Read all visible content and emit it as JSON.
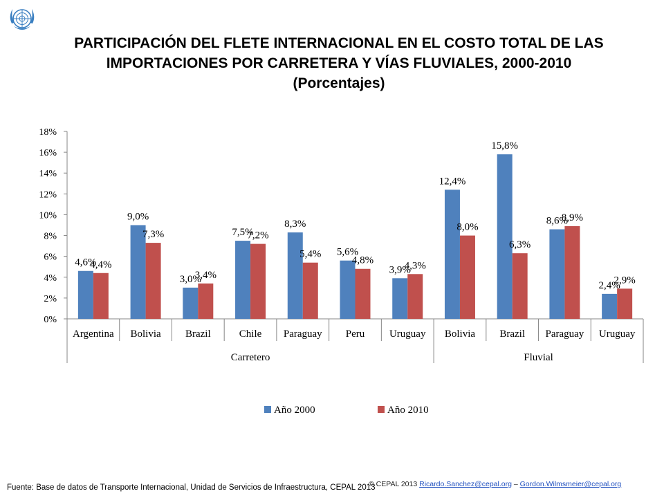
{
  "title": "PARTICIPACIÓN DEL FLETE INTERNACIONAL EN EL COSTO TOTAL DE LAS IMPORTACIONES POR CARRETERA Y VÍAS FLUVIALES, 2000-2010",
  "subtitle": "(Porcentajes)",
  "footer": {
    "source": "Fuente: Base de datos de Transporte Internacional, Unidad de Servicios de Infraestructura, CEPAL 2013",
    "copyright": "© CEPAL 2013",
    "email1": "Ricardo.Sanchez@cepal.org",
    "separator": "–",
    "email2": "Gordon.Wilmsmeier@cepal.org"
  },
  "logo_icon": "un-emblem-icon",
  "chart_data": {
    "type": "bar",
    "categories": [
      "Argentina",
      "Bolivia",
      "Brazil",
      "Chile",
      "Paraguay",
      "Peru",
      "Uruguay",
      "Bolivia",
      "Brazil",
      "Paraguay",
      "Uruguay"
    ],
    "groups": [
      {
        "label": "Carretero",
        "count": 7
      },
      {
        "label": "Fluvial",
        "count": 4
      }
    ],
    "series": [
      {
        "name": "Año 2000",
        "color": "#4f81bd",
        "values": [
          4.6,
          9.0,
          3.0,
          7.5,
          8.3,
          5.6,
          3.9,
          12.4,
          15.8,
          8.6,
          2.4
        ],
        "labels": [
          "4,6%",
          "9,0%",
          "3,0%",
          "7,5%",
          "8,3%",
          "5,6%",
          "3,9%",
          "12,4%",
          "15,8%",
          "8,6%",
          "2,4%"
        ]
      },
      {
        "name": "Año 2010",
        "color": "#c0504d",
        "values": [
          4.4,
          7.3,
          3.4,
          7.2,
          5.4,
          4.8,
          4.3,
          8.0,
          6.3,
          8.9,
          2.9
        ],
        "labels": [
          "4,4%",
          "7,3%",
          "3,4%",
          "7,2%",
          "5,4%",
          "4,8%",
          "4,3%",
          "8,0%",
          "6,3%",
          "8,9%",
          "2,9%"
        ]
      }
    ],
    "ylim": [
      0,
      18
    ],
    "yticks": [
      "0%",
      "2%",
      "4%",
      "6%",
      "8%",
      "10%",
      "12%",
      "14%",
      "16%",
      "18%"
    ],
    "ytick_values": [
      0,
      2,
      4,
      6,
      8,
      10,
      12,
      14,
      16,
      18
    ],
    "grid": false,
    "legend_position": "bottom"
  }
}
